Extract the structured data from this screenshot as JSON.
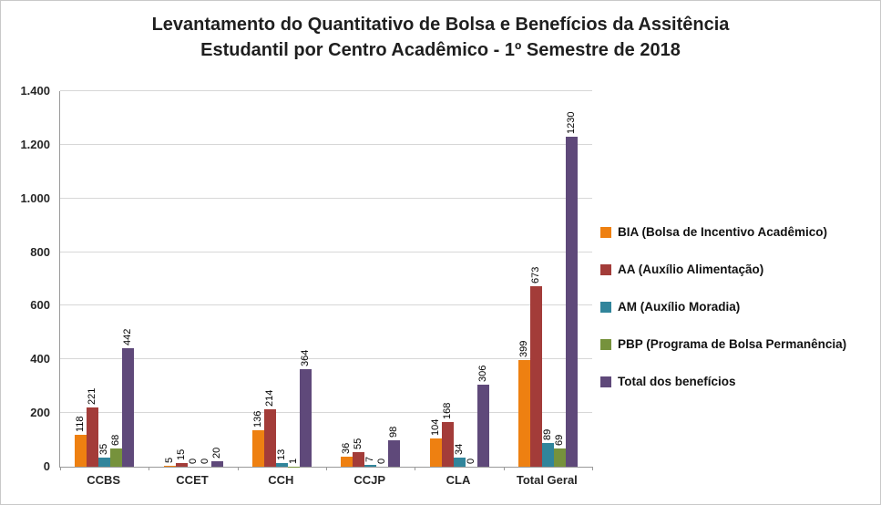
{
  "chart": {
    "title_line1": "Levantamento do Quantitativo de Bolsa e Benefícios da Assitência",
    "title_line2": "Estudantil  por Centro Acadêmico - 1º Semestre de 2018"
  },
  "chart_data": {
    "type": "bar",
    "title": "Levantamento do Quantitativo de Bolsa e Benefícios da Assitência Estudantil por Centro Acadêmico - 1º Semestre de 2018",
    "categories": [
      "CCBS",
      "CCET",
      "CCH",
      "CCJP",
      "CLA",
      "Total Geral"
    ],
    "series": [
      {
        "name": "BIA (Bolsa de Incentivo Acadêmico)",
        "color": "#EE8011",
        "values": [
          118,
          5,
          136,
          36,
          104,
          399
        ]
      },
      {
        "name": "AA (Auxílio Alimentação)",
        "color": "#A33C39",
        "values": [
          221,
          15,
          214,
          55,
          168,
          673
        ]
      },
      {
        "name": "AM (Auxílio Moradia)",
        "color": "#31859B",
        "values": [
          35,
          0,
          13,
          7,
          34,
          89
        ]
      },
      {
        "name": "PBP (Programa de Bolsa Permanência)",
        "color": "#76923C",
        "values": [
          68,
          0,
          1,
          0,
          0,
          69
        ]
      },
      {
        "name": "Total dos benefícios",
        "color": "#5F497A",
        "values": [
          442,
          20,
          364,
          98,
          306,
          1230
        ]
      }
    ],
    "ylim": [
      0,
      1400
    ],
    "yticks": [
      {
        "value": 0,
        "label": "0"
      },
      {
        "value": 200,
        "label": "200"
      },
      {
        "value": 400,
        "label": "400"
      },
      {
        "value": 600,
        "label": "600"
      },
      {
        "value": 800,
        "label": "800"
      },
      {
        "value": 1000,
        "label": "1.000"
      },
      {
        "value": 1200,
        "label": "1.200"
      },
      {
        "value": 1400,
        "label": "1.400"
      }
    ],
    "grid": true,
    "legend_position": "right",
    "bar_label_rotation": -90
  }
}
